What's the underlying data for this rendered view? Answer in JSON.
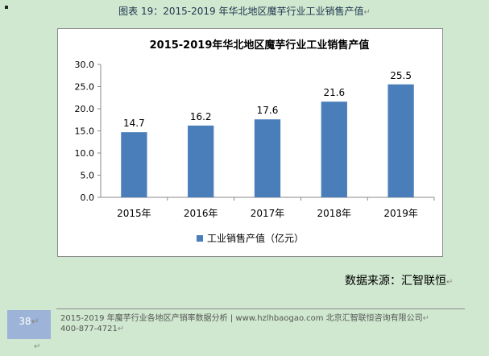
{
  "caption": "图表  19：2015-2019 年华北地区魔芋行业工业销售产值",
  "chart_data": {
    "type": "bar",
    "title": "2015-2019年华北地区魔芋行业工业销售产值",
    "categories": [
      "2015年",
      "2016年",
      "2017年",
      "2018年",
      "2019年"
    ],
    "series": [
      {
        "name": "工业销售产值（亿元）",
        "values": [
          14.7,
          16.2,
          17.6,
          21.6,
          25.5
        ]
      }
    ],
    "data_labels": [
      "14.7",
      "16.2",
      "17.6",
      "21.6",
      "25.5"
    ],
    "ylim": [
      0,
      30
    ],
    "yticks": [
      "0.0",
      "5.0",
      "10.0",
      "15.0",
      "20.0",
      "25.0",
      "30.0"
    ],
    "xlabel": "",
    "ylabel": "",
    "grid": false,
    "legend_position": "bottom",
    "bar_color": "#4a7ebb"
  },
  "source": "数据来源：汇智联恒",
  "page_number": "38",
  "footer": {
    "line1": "2015-2019 年魔芋行业各地区产销率数据分析 | www.hzlhbaogao.com 北京汇智联恒咨询有限公司",
    "line2": "400-877-4721"
  },
  "marks": {
    "return": "↵"
  }
}
